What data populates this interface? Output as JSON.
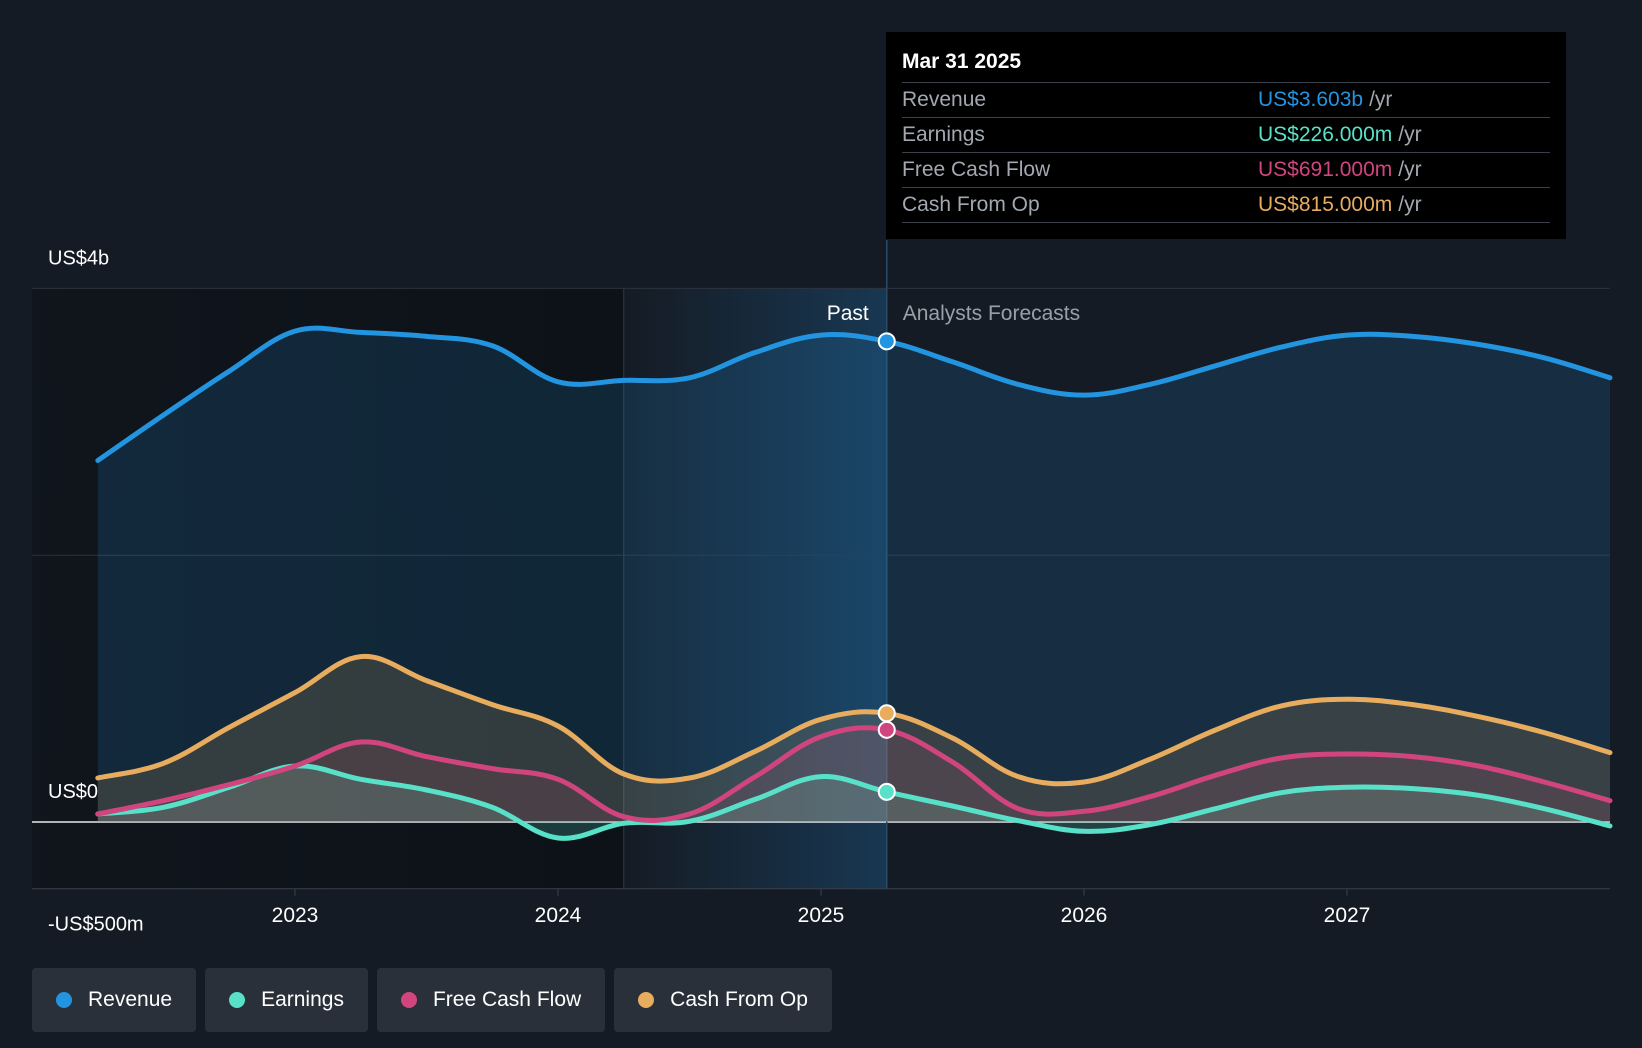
{
  "chart_data": {
    "type": "area",
    "x_axis": {
      "ticks": [
        "2023",
        "2024",
        "2025",
        "2026",
        "2027"
      ]
    },
    "y_axis": {
      "tick_labels": [
        "US$4b",
        "US$0",
        "-US$500m"
      ],
      "ylim": [
        -500,
        4000
      ],
      "unit": "US$ millions"
    },
    "past_label": "Past",
    "forecast_label": "Analysts Forecasts",
    "divider_x": 2025.25,
    "series": [
      {
        "name": "Revenue",
        "color": "#2394df",
        "points": [
          [
            2022.25,
            2710
          ],
          [
            2022.5,
            3050
          ],
          [
            2022.75,
            3380
          ],
          [
            2023.0,
            3680
          ],
          [
            2023.25,
            3670
          ],
          [
            2023.5,
            3640
          ],
          [
            2023.75,
            3570
          ],
          [
            2024.0,
            3300
          ],
          [
            2024.25,
            3310
          ],
          [
            2024.5,
            3330
          ],
          [
            2024.75,
            3520
          ],
          [
            2025.0,
            3650
          ],
          [
            2025.25,
            3603
          ],
          [
            2025.5,
            3450
          ],
          [
            2025.75,
            3280
          ],
          [
            2026.0,
            3200
          ],
          [
            2026.25,
            3280
          ],
          [
            2026.5,
            3420
          ],
          [
            2026.75,
            3560
          ],
          [
            2027.0,
            3650
          ],
          [
            2027.25,
            3640
          ],
          [
            2027.5,
            3580
          ],
          [
            2027.75,
            3480
          ],
          [
            2028.0,
            3330
          ]
        ]
      },
      {
        "name": "Earnings",
        "color": "#58e1c8",
        "points": [
          [
            2022.25,
            60
          ],
          [
            2022.5,
            110
          ],
          [
            2022.75,
            260
          ],
          [
            2023.0,
            420
          ],
          [
            2023.25,
            320
          ],
          [
            2023.5,
            240
          ],
          [
            2023.75,
            110
          ],
          [
            2024.0,
            -120
          ],
          [
            2024.25,
            -10
          ],
          [
            2024.5,
            5
          ],
          [
            2024.75,
            170
          ],
          [
            2025.0,
            340
          ],
          [
            2025.25,
            226
          ],
          [
            2025.5,
            120
          ],
          [
            2025.75,
            10
          ],
          [
            2026.0,
            -70
          ],
          [
            2026.25,
            -20
          ],
          [
            2026.5,
            100
          ],
          [
            2026.75,
            220
          ],
          [
            2027.0,
            260
          ],
          [
            2027.25,
            250
          ],
          [
            2027.5,
            200
          ],
          [
            2027.75,
            100
          ],
          [
            2028.0,
            -30
          ]
        ]
      },
      {
        "name": "Free Cash Flow",
        "color": "#d0457e",
        "points": [
          [
            2022.25,
            60
          ],
          [
            2022.5,
            160
          ],
          [
            2022.75,
            280
          ],
          [
            2023.0,
            420
          ],
          [
            2023.25,
            600
          ],
          [
            2023.5,
            490
          ],
          [
            2023.75,
            400
          ],
          [
            2024.0,
            320
          ],
          [
            2024.25,
            40
          ],
          [
            2024.5,
            60
          ],
          [
            2024.75,
            340
          ],
          [
            2025.0,
            640
          ],
          [
            2025.25,
            691
          ],
          [
            2025.5,
            450
          ],
          [
            2025.75,
            100
          ],
          [
            2026.0,
            80
          ],
          [
            2026.25,
            190
          ],
          [
            2026.5,
            350
          ],
          [
            2026.75,
            480
          ],
          [
            2027.0,
            510
          ],
          [
            2027.25,
            490
          ],
          [
            2027.5,
            420
          ],
          [
            2027.75,
            300
          ],
          [
            2028.0,
            160
          ]
        ]
      },
      {
        "name": "Cash From Op",
        "color": "#e8ac5e",
        "points": [
          [
            2022.25,
            330
          ],
          [
            2022.5,
            440
          ],
          [
            2022.75,
            710
          ],
          [
            2023.0,
            970
          ],
          [
            2023.25,
            1240
          ],
          [
            2023.5,
            1060
          ],
          [
            2023.75,
            880
          ],
          [
            2024.0,
            720
          ],
          [
            2024.25,
            360
          ],
          [
            2024.5,
            330
          ],
          [
            2024.75,
            530
          ],
          [
            2025.0,
            770
          ],
          [
            2025.25,
            815
          ],
          [
            2025.5,
            630
          ],
          [
            2025.75,
            340
          ],
          [
            2026.0,
            300
          ],
          [
            2026.25,
            470
          ],
          [
            2026.5,
            690
          ],
          [
            2026.75,
            870
          ],
          [
            2027.0,
            920
          ],
          [
            2027.25,
            880
          ],
          [
            2027.5,
            790
          ],
          [
            2027.75,
            670
          ],
          [
            2028.0,
            520
          ]
        ]
      }
    ]
  },
  "tooltip": {
    "date": "Mar 31 2025",
    "unit": "/yr",
    "rows": [
      {
        "label": "Revenue",
        "value": "US$3.603b",
        "color": "#2394df"
      },
      {
        "label": "Earnings",
        "value": "US$226.000m",
        "color": "#58e1c8"
      },
      {
        "label": "Free Cash Flow",
        "value": "US$691.000m",
        "color": "#d0457e"
      },
      {
        "label": "Cash From Op",
        "value": "US$815.000m",
        "color": "#e8ac5e"
      }
    ]
  },
  "legend": [
    {
      "label": "Revenue",
      "color": "#2394df"
    },
    {
      "label": "Earnings",
      "color": "#58e1c8"
    },
    {
      "label": "Free Cash Flow",
      "color": "#d0457e"
    },
    {
      "label": "Cash From Op",
      "color": "#e8ac5e"
    }
  ]
}
